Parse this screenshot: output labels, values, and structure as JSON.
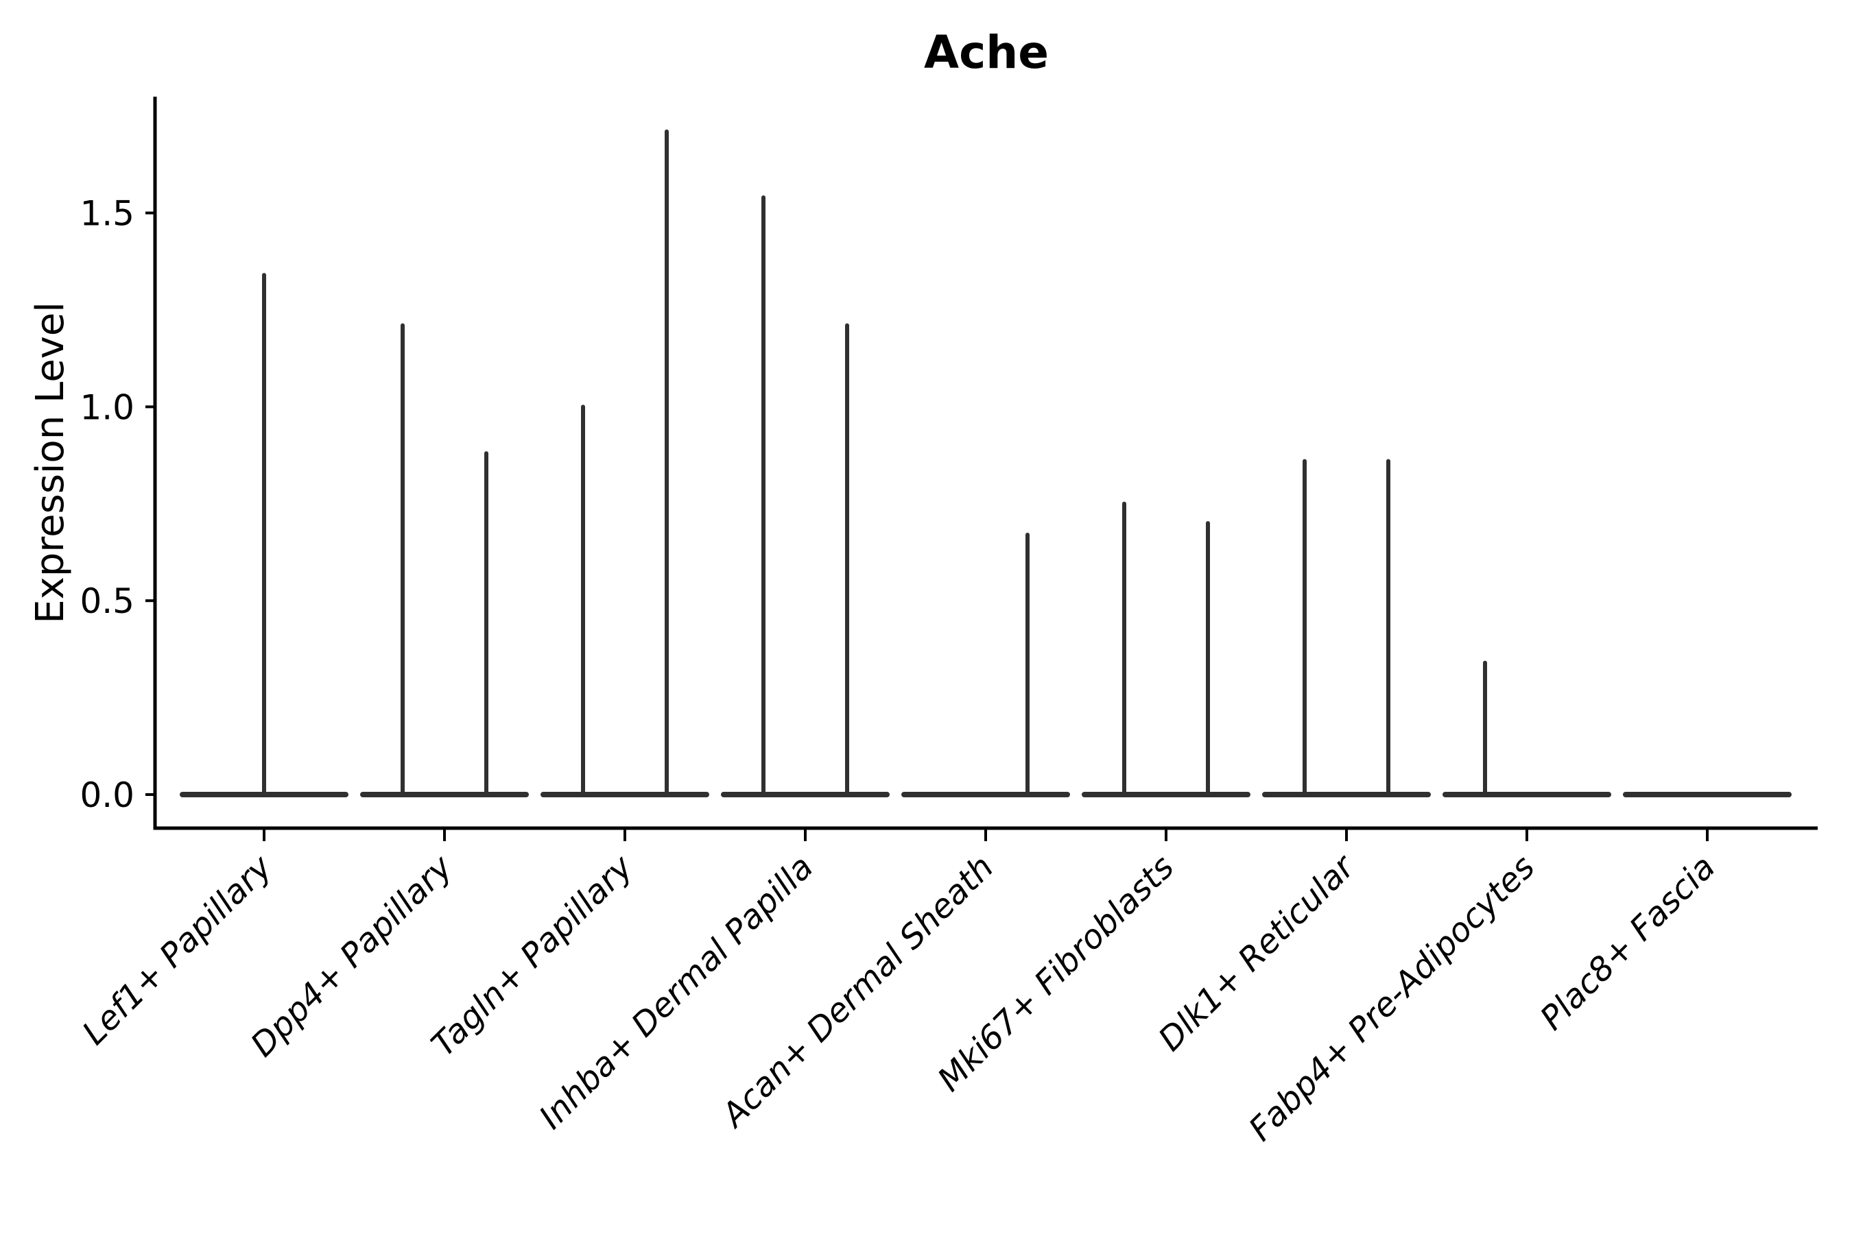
{
  "title": "Ache",
  "colors": {
    "violin": "#303030",
    "axis": "#000000",
    "text": "#000000",
    "background": "#ffffff"
  },
  "chart_data": {
    "type": "violin",
    "title": "Ache",
    "xlabel": "",
    "ylabel": "Expression Level",
    "ylim": [
      -0.09,
      1.8
    ],
    "yticks": [
      0.0,
      0.5,
      1.0,
      1.5
    ],
    "ytick_labels": [
      "0.0",
      "0.5",
      "1.0",
      "1.5"
    ],
    "grid": false,
    "legend_position": "none",
    "x_tick_label_rotation": 45,
    "baseline_value": 0.0,
    "categories": [
      "Lef1+ Papillary",
      "Dpp4+ Papillary",
      "Tagln+ Papillary",
      "Inhba+ Dermal Papilla",
      "Acan+ Dermal Sheath",
      "Mki67+ Fibroblasts",
      "Dlk1+ Reticular",
      "Fabp4+ Pre-Adipocytes",
      "Plac8+ Fascia"
    ],
    "violins": [
      {
        "category": "Lef1+ Papillary",
        "spikes": [
          {
            "position": "center",
            "max": 1.34
          }
        ]
      },
      {
        "category": "Dpp4+ Papillary",
        "spikes": [
          {
            "position": "left",
            "max": 1.21
          },
          {
            "position": "right",
            "max": 0.88
          }
        ]
      },
      {
        "category": "Tagln+ Papillary",
        "spikes": [
          {
            "position": "left",
            "max": 1.0
          },
          {
            "position": "right",
            "max": 1.71
          }
        ]
      },
      {
        "category": "Inhba+ Dermal Papilla",
        "spikes": [
          {
            "position": "left",
            "max": 1.54
          },
          {
            "position": "right",
            "max": 1.21
          }
        ]
      },
      {
        "category": "Acan+ Dermal Sheath",
        "spikes": [
          {
            "position": "right",
            "max": 0.67
          }
        ]
      },
      {
        "category": "Mki67+ Fibroblasts",
        "spikes": [
          {
            "position": "left",
            "max": 0.75
          },
          {
            "position": "right",
            "max": 0.7
          }
        ]
      },
      {
        "category": "Dlk1+ Reticular",
        "spikes": [
          {
            "position": "left",
            "max": 0.86
          },
          {
            "position": "right",
            "max": 0.86
          }
        ]
      },
      {
        "category": "Fabp4+ Pre-Adipocytes",
        "spikes": [
          {
            "position": "left",
            "max": 0.34
          }
        ]
      },
      {
        "category": "Plac8+ Fascia",
        "spikes": []
      }
    ]
  }
}
